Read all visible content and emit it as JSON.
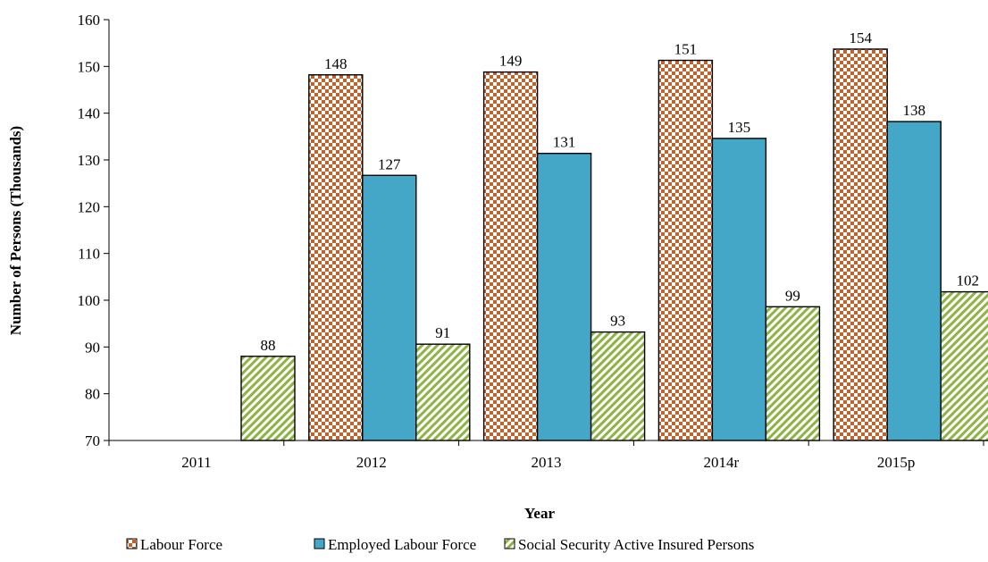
{
  "chart_data": {
    "type": "bar",
    "title": "",
    "xlabel": "Year",
    "ylabel": "Number of Persons (Thousands)",
    "categories": [
      "2011",
      "2012",
      "2013",
      "2014r",
      "2015p"
    ],
    "ylim": [
      70,
      160
    ],
    "yticks": [
      70,
      80,
      90,
      100,
      110,
      120,
      130,
      140,
      150,
      160
    ],
    "grid": false,
    "legend_position": "bottom",
    "series": [
      {
        "name": "Labour Force",
        "values": [
          70,
          148.2,
          148.8,
          151.3,
          153.7
        ],
        "labels": [
          "",
          "148",
          "149",
          "151",
          "154"
        ],
        "color": "#c0622a",
        "pattern": "checker"
      },
      {
        "name": "Employed Labour Force",
        "values": [
          70,
          126.7,
          131.4,
          134.6,
          138.2
        ],
        "labels": [
          "",
          "127",
          "131",
          "135",
          "138"
        ],
        "color": "#45a7c8",
        "pattern": "solid"
      },
      {
        "name": "Social Security Active Insured Persons",
        "values": [
          88,
          90.6,
          93.2,
          98.6,
          101.8
        ],
        "labels": [
          "88",
          "91",
          "93",
          "99",
          "102"
        ],
        "color": "#8db442",
        "pattern": "diagonal"
      }
    ]
  }
}
